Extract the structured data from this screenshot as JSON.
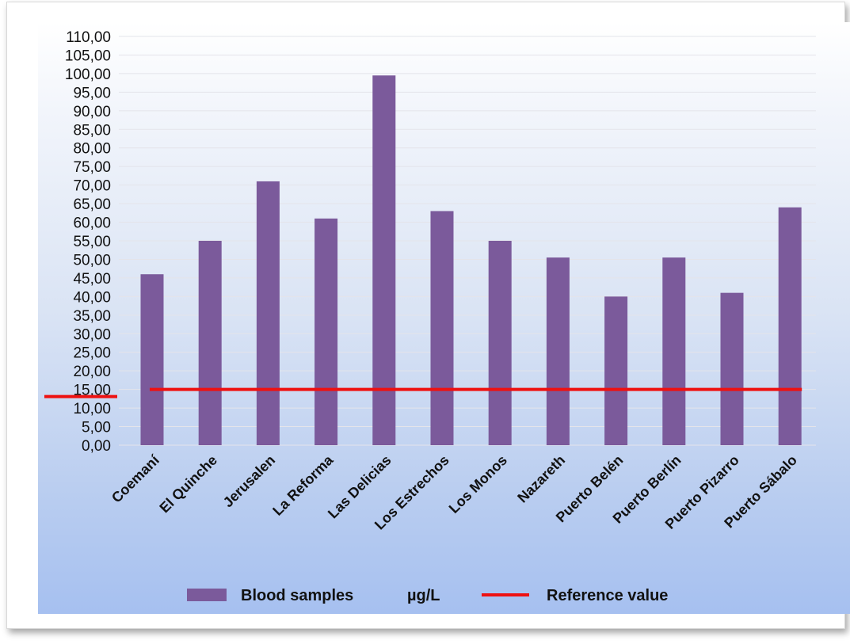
{
  "chart_data": {
    "type": "bar",
    "categories": [
      "Coemaní",
      "El Quinche",
      "Jerusalen",
      "La Reforma",
      "Las Delicias",
      "Los Estrechos",
      "Los Monos",
      "Nazareth",
      "Puerto Belén",
      "Puerto Berlín",
      "Puerto Pizarro",
      "Puerto Sábalo"
    ],
    "series": [
      {
        "name": "Blood samples",
        "values": [
          46,
          55,
          71,
          61,
          99.5,
          63,
          55,
          50.5,
          40,
          50.5,
          41,
          64
        ],
        "color": "#7b5a9b"
      }
    ],
    "reference_line": {
      "name": "Reference value",
      "value": 15,
      "color": "#ee1111"
    },
    "unit_label": "µg/L",
    "y_ticks": [
      "0,00",
      "5,00",
      "10,00",
      "15,00",
      "20,00",
      "25,00",
      "30,00",
      "35,00",
      "40,00",
      "45,00",
      "50,00",
      "55,00",
      "60,00",
      "65,00",
      "70,00",
      "75,00",
      "80,00",
      "85,00",
      "90,00",
      "95,00",
      "100,00",
      "105,00",
      "110,00"
    ],
    "ylim": [
      0,
      110
    ],
    "grid": true,
    "legend_position": "bottom",
    "title": "",
    "xlabel": "",
    "ylabel": ""
  }
}
